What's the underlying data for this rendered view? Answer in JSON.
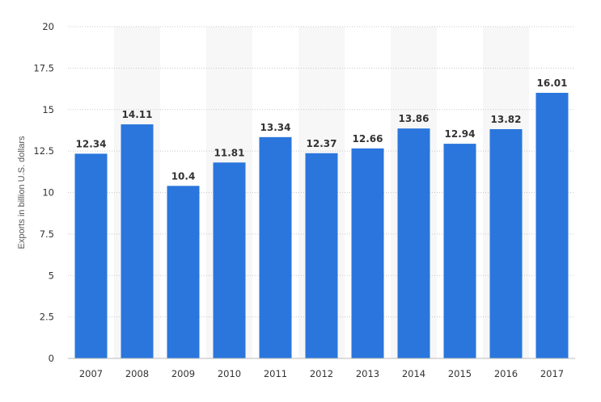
{
  "chart_data": {
    "type": "bar",
    "title": "",
    "xlabel": "",
    "ylabel": "Exports in billion U.S. dollars",
    "categories": [
      "2007",
      "2008",
      "2009",
      "2010",
      "2011",
      "2012",
      "2013",
      "2014",
      "2015",
      "2016",
      "2017"
    ],
    "values": [
      12.34,
      14.11,
      10.4,
      11.81,
      13.34,
      12.37,
      12.66,
      13.86,
      12.94,
      13.82,
      16.01
    ],
    "value_labels": [
      "12.34",
      "14.11",
      "10.4",
      "11.81",
      "13.34",
      "12.37",
      "12.66",
      "13.86",
      "12.94",
      "13.82",
      "16.01"
    ],
    "ylim": [
      0,
      20
    ],
    "yticks": [
      0,
      2.5,
      5,
      7.5,
      10,
      12.5,
      15,
      17.5,
      20
    ],
    "ytick_labels": [
      "0",
      "2.5",
      "5",
      "7.5",
      "10",
      "12.5",
      "15",
      "17.5",
      "20"
    ],
    "grid": true,
    "bar_color": "#2a76dd",
    "band_color": "#f7f7f7",
    "grid_color": "#c8c8c8"
  }
}
